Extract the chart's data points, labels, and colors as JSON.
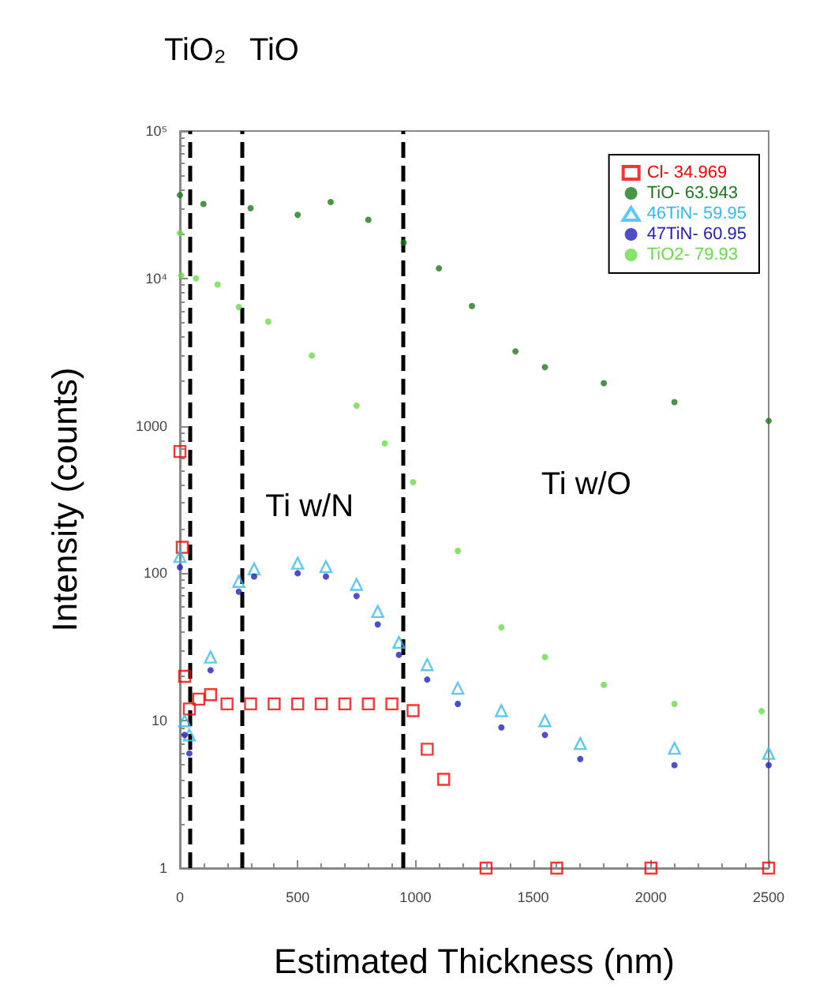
{
  "chart_data": {
    "type": "scatter",
    "xlabel": "Estimated Thickness (nm)",
    "ylabel": "Intensity (counts)",
    "log": "y",
    "xlim": [
      0,
      2500
    ],
    "xticks": [
      0,
      500,
      1000,
      1500,
      2000,
      2500
    ],
    "ylim": [
      1,
      100000
    ],
    "yticks": [
      1,
      10,
      100,
      1000,
      {
        "value": 10000,
        "label": "10⁴"
      },
      {
        "value": 100000,
        "label": "10⁵"
      }
    ],
    "grid": false,
    "legend": "top right",
    "series": [
      {
        "name": "Cl- 34.969",
        "color": "#ff0000",
        "marker": "square",
        "x": [
          0,
          10,
          20,
          40,
          80,
          130,
          200,
          300,
          400,
          500,
          600,
          700,
          800,
          900,
          990,
          1050,
          1120,
          1300,
          1600,
          2000,
          2500
        ],
        "values": [
          670,
          150,
          20,
          12,
          14,
          15,
          13,
          13,
          13,
          13,
          13,
          13,
          13,
          13,
          11.7,
          6.4,
          4,
          1,
          1,
          1,
          1
        ]
      },
      {
        "name": "TiO- 63.943",
        "color": "#1a7a1a",
        "marker": "circle",
        "x": [
          0,
          100,
          300,
          500,
          640,
          800,
          950,
          1100,
          1240,
          1425,
          1550,
          1800,
          2100,
          2500
        ],
        "values": [
          36700,
          32000,
          30000,
          27000,
          33000,
          25000,
          17500,
          11700,
          6500,
          3200,
          2500,
          1950,
          1450,
          1080
        ]
      },
      {
        "name": "46TiN- 59.95",
        "color": "#33bbee",
        "marker": "triangle",
        "x": [
          0,
          20,
          40,
          130,
          250,
          315,
          500,
          620,
          750,
          840,
          930,
          1050,
          1180,
          1365,
          1550,
          1700,
          2100,
          2500
        ],
        "values": [
          130,
          10,
          8,
          27,
          88,
          107,
          117,
          111,
          84,
          55,
          34,
          24,
          16.6,
          11.7,
          10,
          7,
          6.5,
          6
        ]
      },
      {
        "name": "47TiN- 60.95",
        "color": "#2222bb",
        "marker": "circle",
        "x": [
          0,
          20,
          40,
          130,
          250,
          315,
          500,
          620,
          750,
          840,
          930,
          1050,
          1180,
          1365,
          1550,
          1700,
          2100,
          2500
        ],
        "values": [
          110,
          8,
          6,
          22,
          75,
          95,
          100,
          95,
          70,
          45,
          28,
          19,
          13,
          9,
          8,
          5.5,
          5,
          5
        ]
      },
      {
        "name": "TiO2- 79.93",
        "color": "#66dd44",
        "marker": "circle",
        "x": [
          0,
          5,
          68,
          160,
          250,
          375,
          560,
          750,
          870,
          990,
          1180,
          1365,
          1550,
          1800,
          2100,
          2470
        ],
        "values": [
          20300,
          10500,
          10000,
          9100,
          6400,
          5100,
          3000,
          1370,
          760,
          415,
          142,
          43,
          27,
          17.5,
          13,
          11.6
        ]
      }
    ],
    "ref_lines": [
      {
        "axis": "x",
        "value": 40,
        "color": "#000000",
        "line_style": "dashed"
      },
      {
        "axis": "x",
        "value": 265,
        "color": "#000000",
        "line_style": "dashed"
      },
      {
        "axis": "x",
        "value": 945,
        "color": "#000000",
        "line_style": "dashed"
      }
    ],
    "annotations": [
      "TiO₂",
      "TiO",
      "Ti w/N",
      "Ti w/O"
    ]
  }
}
